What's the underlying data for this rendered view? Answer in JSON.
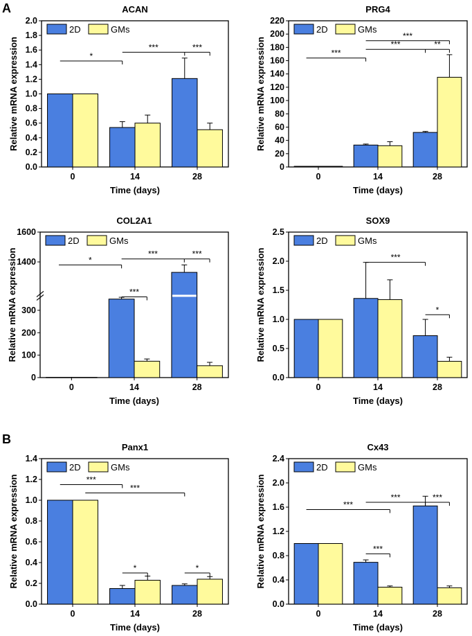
{
  "panel_labels": {
    "a": "A",
    "b": "B"
  },
  "colors": {
    "2D": "#4a7fe0",
    "GMs": "#fffa9c"
  },
  "chart_data": [
    {
      "type": "bar",
      "title": "ACAN",
      "xlabel": "Time (days)",
      "ylabel": "Relative mRNA expression",
      "categories": [
        "0",
        "14",
        "28"
      ],
      "ylim": [
        0,
        2.0
      ],
      "yticks": [
        "0.0",
        "0.2",
        "0.4",
        "0.6",
        "0.8",
        "1.0",
        "1.2",
        "1.4",
        "1.6",
        "1.8",
        "2.0"
      ],
      "legend": [
        "2D",
        "GMs"
      ],
      "series": [
        {
          "name": "2D",
          "values": [
            1.0,
            0.54,
            1.21
          ],
          "errors": [
            0,
            0.08,
            0.28
          ]
        },
        {
          "name": "GMs",
          "values": [
            1.0,
            0.6,
            0.51
          ],
          "errors": [
            0,
            0.11,
            0.09
          ]
        }
      ],
      "annotations": [
        {
          "text": "*",
          "from": [
            0,
            0
          ],
          "to": [
            1,
            0
          ],
          "y": 1.45
        },
        {
          "text": "***",
          "from": [
            1,
            0
          ],
          "to": [
            2,
            0
          ],
          "y": 1.57
        },
        {
          "text": "***",
          "from": [
            2,
            0
          ],
          "to": [
            2,
            1
          ],
          "y": 1.57
        }
      ]
    },
    {
      "type": "bar",
      "title": "PRG4",
      "xlabel": "Time (days)",
      "ylabel": "Relative mRNA expression",
      "categories": [
        "0",
        "14",
        "28"
      ],
      "ylim": [
        0,
        220
      ],
      "yticks": [
        "0",
        "20",
        "40",
        "60",
        "80",
        "100",
        "120",
        "140",
        "160",
        "180",
        "200",
        "220"
      ],
      "legend": [
        "2D",
        "GMs"
      ],
      "series": [
        {
          "name": "2D",
          "values": [
            1,
            33,
            52
          ],
          "errors": [
            0,
            1.5,
            1.5
          ]
        },
        {
          "name": "GMs",
          "values": [
            1,
            32,
            135
          ],
          "errors": [
            0,
            6,
            34
          ]
        }
      ],
      "annotations": [
        {
          "text": "***",
          "from": [
            0,
            0
          ],
          "to": [
            1,
            0
          ],
          "y": 164
        },
        {
          "text": "***",
          "from": [
            1,
            0
          ],
          "to": [
            2,
            0
          ],
          "y": 177
        },
        {
          "text": "**",
          "from": [
            2,
            0
          ],
          "to": [
            2,
            1
          ],
          "y": 177
        },
        {
          "text": "***",
          "from": [
            1,
            0
          ],
          "to": [
            2,
            1
          ],
          "y": 190
        }
      ]
    },
    {
      "type": "bar",
      "title": "COL2A1",
      "xlabel": "Time (days)",
      "ylabel": "Relative mRNA expression",
      "categories": [
        "0",
        "14",
        "28"
      ],
      "broken_axis": {
        "lower": [
          0,
          360
        ],
        "upper": [
          1200,
          1600
        ]
      },
      "yticks": [
        "0",
        "100",
        "200",
        "300",
        "1400",
        "1600"
      ],
      "legend": [
        "2D",
        "GMs"
      ],
      "series": [
        {
          "name": "2D",
          "values": [
            1,
            350,
            1330
          ],
          "errors": [
            0,
            8,
            50
          ]
        },
        {
          "name": "GMs",
          "values": [
            1,
            73,
            53
          ],
          "errors": [
            0,
            10,
            15
          ]
        }
      ],
      "annotations": [
        {
          "text": "*",
          "from": [
            0,
            0
          ],
          "to": [
            1,
            0
          ],
          "y": 1380
        },
        {
          "text": "***",
          "from": [
            1,
            0
          ],
          "to": [
            2,
            0
          ],
          "y": 1420
        },
        {
          "text": "***",
          "from": [
            2,
            0
          ],
          "to": [
            2,
            1
          ],
          "y": 1420
        },
        {
          "text": "***",
          "from": [
            1,
            0
          ],
          "to": [
            1,
            1
          ],
          "y": 385
        }
      ]
    },
    {
      "type": "bar",
      "title": "SOX9",
      "xlabel": "Time (days)",
      "ylabel": "Relative mRNA expression",
      "categories": [
        "0",
        "14",
        "28"
      ],
      "ylim": [
        0,
        2.5
      ],
      "yticks": [
        "0.0",
        "0.5",
        "1.0",
        "1.5",
        "2.0",
        "2.5"
      ],
      "legend": [
        "2D",
        "GMs"
      ],
      "series": [
        {
          "name": "2D",
          "values": [
            1.0,
            1.36,
            0.72
          ],
          "errors": [
            0,
            0.62,
            0.28
          ]
        },
        {
          "name": "GMs",
          "values": [
            1.0,
            1.34,
            0.28
          ],
          "errors": [
            0,
            0.34,
            0.07
          ]
        }
      ],
      "annotations": [
        {
          "text": "***",
          "from": [
            1,
            0
          ],
          "to": [
            2,
            0
          ],
          "y": 1.98
        },
        {
          "text": "*",
          "from": [
            2,
            0
          ],
          "to": [
            2,
            1
          ],
          "y": 1.08
        }
      ]
    },
    {
      "type": "bar",
      "title": "Panx1",
      "xlabel": "Time (days)",
      "ylabel": "Relative mRNA expression",
      "categories": [
        "0",
        "14",
        "28"
      ],
      "ylim": [
        0,
        1.4
      ],
      "yticks": [
        "0.0",
        "0.2",
        "0.4",
        "0.6",
        "0.8",
        "1.0",
        "1.2",
        "1.4"
      ],
      "legend": [
        "2D",
        "GMs"
      ],
      "series": [
        {
          "name": "2D",
          "values": [
            1.0,
            0.15,
            0.18
          ],
          "errors": [
            0,
            0.03,
            0.015
          ]
        },
        {
          "name": "GMs",
          "values": [
            1.0,
            0.23,
            0.24
          ],
          "errors": [
            0,
            0.04,
            0.025
          ]
        }
      ],
      "annotations": [
        {
          "text": "***",
          "from": [
            0,
            0
          ],
          "to": [
            1,
            0
          ],
          "y": 1.15
        },
        {
          "text": "***",
          "from": [
            0,
            1
          ],
          "to": [
            2,
            0
          ],
          "y": 1.07
        },
        {
          "text": "*",
          "from": [
            1,
            0
          ],
          "to": [
            1,
            1
          ],
          "y": 0.3
        },
        {
          "text": "*",
          "from": [
            2,
            0
          ],
          "to": [
            2,
            1
          ],
          "y": 0.3
        }
      ]
    },
    {
      "type": "bar",
      "title": "Cx43",
      "xlabel": "Time (days)",
      "ylabel": "Relative mRNA expression",
      "categories": [
        "0",
        "14",
        "28"
      ],
      "ylim": [
        0,
        2.4
      ],
      "yticks": [
        "0.0",
        "0.4",
        "0.8",
        "1.2",
        "1.6",
        "2.0",
        "2.4"
      ],
      "legend": [
        "2D",
        "GMs"
      ],
      "series": [
        {
          "name": "2D",
          "values": [
            1.0,
            0.69,
            1.62
          ],
          "errors": [
            0,
            0.04,
            0.16
          ]
        },
        {
          "name": "GMs",
          "values": [
            1.0,
            0.28,
            0.27
          ],
          "errors": [
            0,
            0.02,
            0.03
          ]
        }
      ],
      "annotations": [
        {
          "text": "***",
          "from": [
            0,
            0
          ],
          "to": [
            1,
            1
          ],
          "y": 1.56
        },
        {
          "text": "***",
          "from": [
            1,
            0
          ],
          "to": [
            2,
            0
          ],
          "y": 1.68
        },
        {
          "text": "***",
          "from": [
            2,
            0
          ],
          "to": [
            2,
            1
          ],
          "y": 1.68
        },
        {
          "text": "***",
          "from": [
            1,
            0
          ],
          "to": [
            1,
            1
          ],
          "y": 0.83
        }
      ]
    }
  ]
}
